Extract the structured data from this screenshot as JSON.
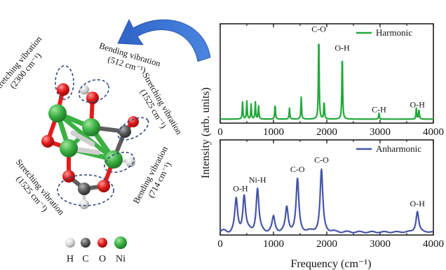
{
  "molecule": {
    "annotations": [
      {
        "line1": "Stretching vibration",
        "line2": "(2300 cm⁻¹)"
      },
      {
        "line1": "Bending vibration",
        "line2": "(512 cm⁻¹)"
      },
      {
        "line1": "Stretching vibration",
        "line2": "(1525 cm⁻¹)"
      },
      {
        "line1": "Bending vibration",
        "line2": "(714 cm⁻¹)"
      },
      {
        "line1": "Stretching vibration",
        "line2": "(1525 cm⁻¹)"
      }
    ],
    "atom_legend": [
      {
        "label": "H",
        "color": "#d8d8d8"
      },
      {
        "label": "C",
        "color": "#5d5d5d"
      },
      {
        "label": "O",
        "color": "#e31c1c"
      },
      {
        "label": "Ni",
        "color": "#3cb043"
      }
    ]
  },
  "shared_ylabel": "Intensity (arb. units)",
  "shared_xlabel": "Frequency (cm⁻¹)",
  "chart_data": [
    {
      "type": "line",
      "panel": "top",
      "series": [
        {
          "name": "Harmonic",
          "color": "#22a83a"
        }
      ],
      "xlim": [
        0,
        4000
      ],
      "ylim": [
        0,
        1
      ],
      "xticks": [
        "0",
        "1000",
        "2000",
        "3000",
        "4000"
      ],
      "xlabel": "",
      "ylabel": "",
      "legend_position": "top-right",
      "peaks": [
        {
          "x": 420,
          "y": 0.17
        },
        {
          "x": 500,
          "y": 0.18
        },
        {
          "x": 580,
          "y": 0.15
        },
        {
          "x": 660,
          "y": 0.17
        },
        {
          "x": 720,
          "y": 0.13
        },
        {
          "x": 1030,
          "y": 0.15
        },
        {
          "x": 1300,
          "y": 0.11
        },
        {
          "x": 1520,
          "y": 0.22
        },
        {
          "x": 1850,
          "y": 0.88
        },
        {
          "x": 1950,
          "y": 0.18
        },
        {
          "x": 2290,
          "y": 0.68
        },
        {
          "x": 2980,
          "y": 0.06
        },
        {
          "x": 3680,
          "y": 0.11
        },
        {
          "x": 3730,
          "y": 0.1
        }
      ],
      "annotations": [
        {
          "text": "C-O",
          "x": 1850,
          "y": 0.92
        },
        {
          "text": "O-H",
          "x": 2290,
          "y": 0.73
        },
        {
          "text": "C-H",
          "x": 2980,
          "y": 0.11
        },
        {
          "text": "O-H",
          "x": 3700,
          "y": 0.16
        }
      ]
    },
    {
      "type": "line",
      "panel": "bottom",
      "series": [
        {
          "name": "Anharmonic",
          "color": "#4557a8"
        }
      ],
      "xlim": [
        0,
        4000
      ],
      "ylim": [
        0,
        1
      ],
      "xticks": [
        "0",
        "1000",
        "2000",
        "3000",
        "4000"
      ],
      "xlabel": "Frequency (cm⁻¹)",
      "ylabel": "",
      "legend_position": "top-right",
      "peaks": [
        {
          "x": 300,
          "y": 0.33
        },
        {
          "x": 450,
          "y": 0.38
        },
        {
          "x": 700,
          "y": 0.45
        },
        {
          "x": 1000,
          "y": 0.15
        },
        {
          "x": 1250,
          "y": 0.25
        },
        {
          "x": 1450,
          "y": 0.55
        },
        {
          "x": 1900,
          "y": 0.65
        },
        {
          "x": 3700,
          "y": 0.22
        }
      ],
      "annotations": [
        {
          "text": "O-H",
          "x": 380,
          "y": 0.46
        },
        {
          "text": "Ni-H",
          "x": 700,
          "y": 0.55
        },
        {
          "text": "C-O",
          "x": 1450,
          "y": 0.66
        },
        {
          "text": "C-O",
          "x": 1900,
          "y": 0.76
        },
        {
          "text": "O-H",
          "x": 3700,
          "y": 0.3
        }
      ]
    }
  ]
}
